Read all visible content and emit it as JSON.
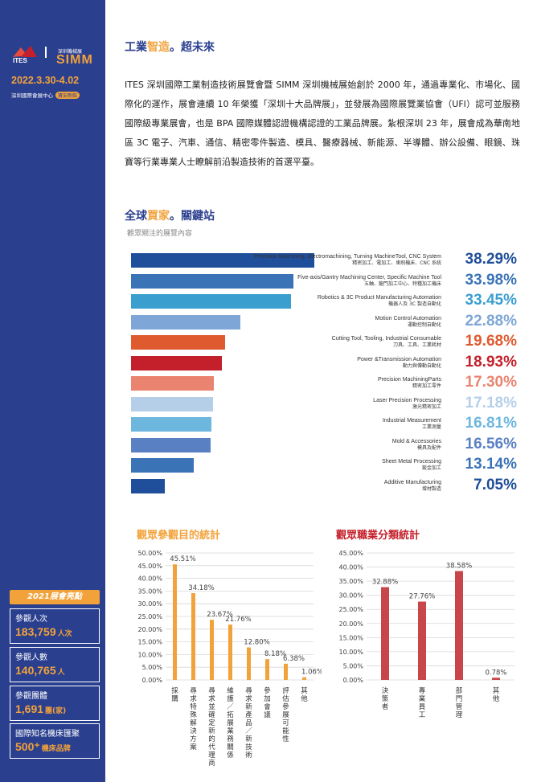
{
  "sidebar": {
    "logo_ites": "ITES",
    "logo_simm_small": "深圳機械展",
    "logo_simm": "SIMM",
    "date": "2022.3.30-4.02",
    "venue": "深圳國際會展中心",
    "venue_badge": "寶安新館",
    "highlights_title": "2021展會亮點",
    "stats": [
      {
        "label": "參觀人次",
        "value": "183,759",
        "unit": "人次"
      },
      {
        "label": "參觀人數",
        "value": "140,765",
        "unit": "人"
      },
      {
        "label": "參觀團體",
        "value": "1,691",
        "unit": "團(家)"
      },
      {
        "label": "國際知名機床匯聚",
        "value": "500⁺",
        "unit": "機床品牌"
      }
    ]
  },
  "section1": {
    "title_a": "工業",
    "title_b": "智造",
    "title_c": "。超未來",
    "paragraph": "ITES 深圳國際工業制造技術展覽會暨 SIMM 深圳機械展始創於 2000 年，通過專業化、市場化、國際化的運作，展會連續 10 年榮獲「深圳十大品牌展」，並發展為國際展覽業協會（UFI）認可並服務國際級專業展會，也是 BPA 國際媒體認證機構認證的工業品牌展。紮根深圳 23 年，展會成為華南地區 3C 電子、汽車、通信、精密零件製造、模具、醫療器械、新能源、半導體、辦公設備、眼鏡、珠寶等行業專業人士瞭解前沿製造技術的首選平臺。"
  },
  "section2": {
    "title_a": "全球",
    "title_b": "買家",
    "title_c": "。關鍵站",
    "subtitle": "觀眾關注的展覽內容"
  },
  "chart_data": [
    {
      "type": "bar",
      "orientation": "horizontal",
      "title": "",
      "categories": [
        {
          "en": "Precision Machining, Electromachining, Turning MachineTool, CNC System",
          "zh": "精密加工、電加工、車削機床、CNC 系統"
        },
        {
          "en": "Five-axis/Gantry Machining Center, Specific Machine Tool",
          "zh": "五軸、龍門加工中心、特種加工機床"
        },
        {
          "en": "Robotics & 3C Product Manufacturing Automation",
          "zh": "機器人及 3C 製造自動化"
        },
        {
          "en": "Motion Control Automation",
          "zh": "運動控制自動化"
        },
        {
          "en": "Cutting Tool, Tooling, Industrial Consumable",
          "zh": "刀具、工具、工業耗材"
        },
        {
          "en": "Power &Transmission Automation",
          "zh": "動力與傳動自動化"
        },
        {
          "en": "Precision MachiningParts",
          "zh": "精密加工零件"
        },
        {
          "en": "Laser Precision Processing",
          "zh": "激光精密加工"
        },
        {
          "en": "Industrial Measurement",
          "zh": "工業測量"
        },
        {
          "en": "Mold & Accessories",
          "zh": "模具及配件"
        },
        {
          "en": "Sheet Metal Processing",
          "zh": "鈑金加工"
        },
        {
          "en": "Additive Manufacturing",
          "zh": "增材製造"
        }
      ],
      "values": [
        38.29,
        33.98,
        33.45,
        22.88,
        19.68,
        18.93,
        17.3,
        17.18,
        16.81,
        16.56,
        13.14,
        7.05
      ],
      "value_labels": [
        "38.29%",
        "33.98%",
        "33.45%",
        "22.88%",
        "19.68%",
        "18.93%",
        "17.30%",
        "17.18%",
        "16.81%",
        "16.56%",
        "13.14%",
        "7.05%"
      ],
      "bar_colors": [
        "#1f4e9a",
        "#3a74b7",
        "#3a9ecf",
        "#7ea6d6",
        "#e05a2f",
        "#c4202b",
        "#ea8470",
        "#b6cfe9",
        "#6db7df",
        "#5a80c4",
        "#3a74b7",
        "#1f4e9a"
      ],
      "xlim": [
        0,
        100
      ]
    },
    {
      "type": "bar",
      "title": "觀眾參觀目的統計",
      "categories": [
        "採購",
        "尋求特殊解決方案",
        "尋求並確定新的代理商",
        "維護／拓展業務關係",
        "尋求新產品／新技術",
        "參加會議",
        "評估參展可能性",
        "其他"
      ],
      "values": [
        45.51,
        34.18,
        23.67,
        21.76,
        12.8,
        8.18,
        6.38,
        1.06
      ],
      "value_labels": [
        "45.51%",
        "34.18%",
        "23.67%",
        "21.76%",
        "12.80%",
        "8.18%",
        "6.38%",
        "1.06%"
      ],
      "y_ticks": [
        "0.00%",
        "5.00%",
        "10.00%",
        "15.00%",
        "20.00%",
        "25.00%",
        "30.00%",
        "35.00%",
        "40.00%",
        "45.00%",
        "50.00%"
      ],
      "ylim": [
        0,
        50
      ],
      "grid": true,
      "color": "#f2a23a"
    },
    {
      "type": "bar",
      "title": "觀眾職業分類統計",
      "categories": [
        "決策者",
        "專業員工",
        "部門管理",
        "其他"
      ],
      "values": [
        32.88,
        27.76,
        38.58,
        0.78
      ],
      "value_labels": [
        "32.88%",
        "27.76%",
        "38.58%",
        "0.78%"
      ],
      "y_ticks": [
        "0.00%",
        "5.00%",
        "10.00%",
        "15.00%",
        "20.00%",
        "25.00%",
        "30.00%",
        "35.00%",
        "40.00%",
        "45.00%"
      ],
      "ylim": [
        0,
        45
      ],
      "grid": true,
      "color": "#c8464a"
    }
  ]
}
